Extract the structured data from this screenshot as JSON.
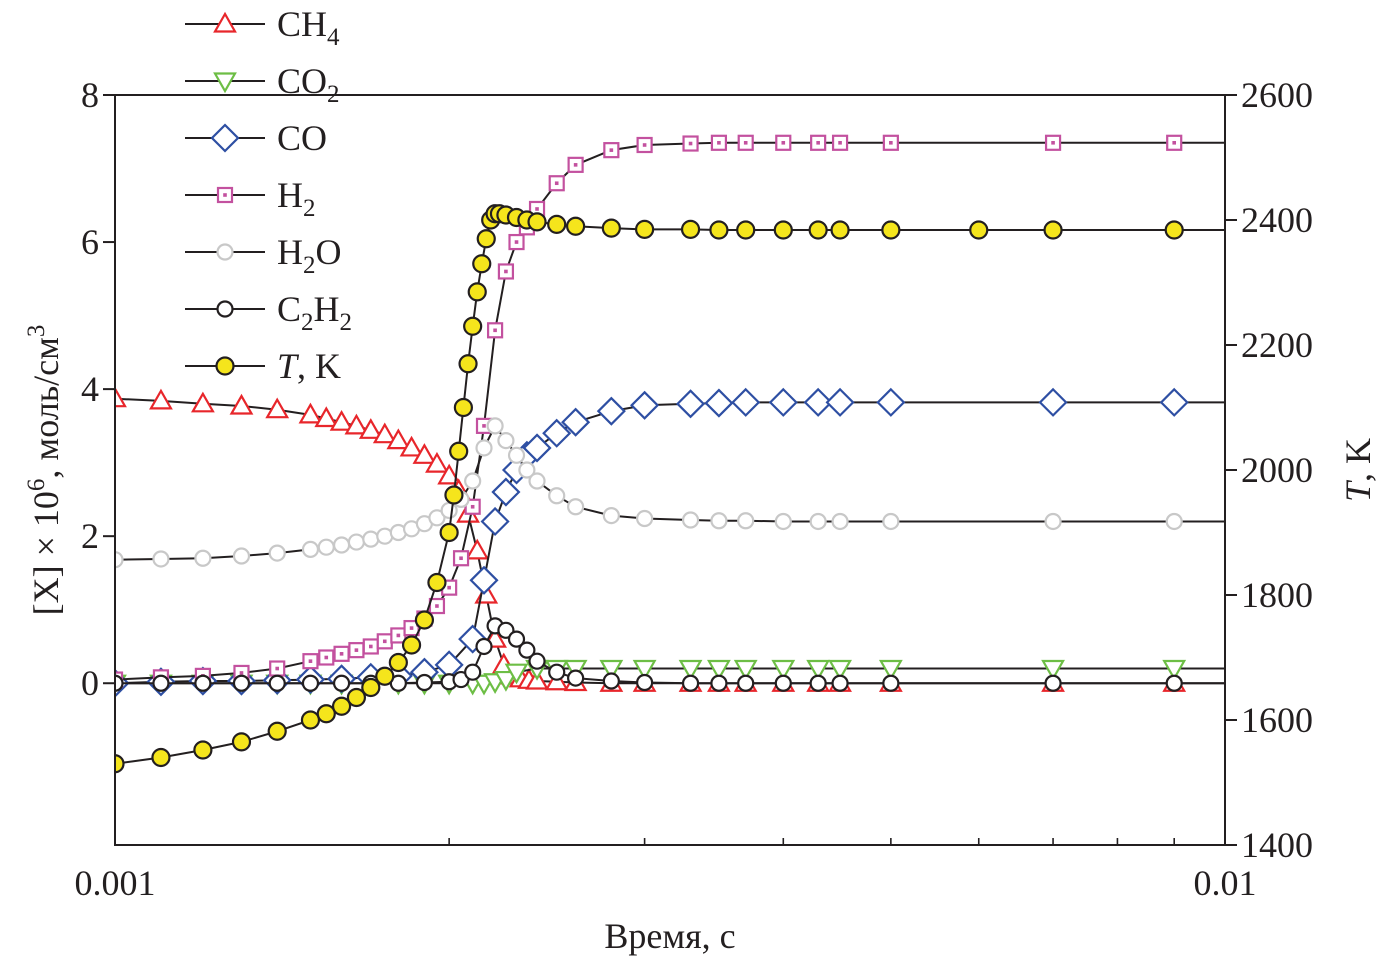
{
  "chart_data": {
    "type": "scatter",
    "title": "",
    "x_scale": "log",
    "xlim": [
      0.001,
      0.01
    ],
    "x_ticks": [
      "0.001",
      "0.01"
    ],
    "xlabel": "Время, с",
    "y_left": {
      "label_parts": [
        "[X] × 10",
        "6",
        ", моль/см",
        "3"
      ],
      "lim": [
        -2.2,
        8
      ],
      "ticks": [
        "0",
        "2",
        "4",
        "6",
        "8"
      ]
    },
    "y_right": {
      "label_parts": [
        "T",
        ", K"
      ],
      "lim": [
        1400,
        2600
      ],
      "ticks": [
        "1400",
        "1600",
        "1800",
        "2000",
        "2200",
        "2400",
        "2600"
      ]
    },
    "grid": false,
    "legend_position": "top-left",
    "series": [
      {
        "name": "CH4",
        "name_parts": [
          [
            "CH",
            "normal"
          ],
          [
            "4",
            "sub"
          ]
        ],
        "axis": "left",
        "marker": "triangle-up",
        "color": "#e8262b",
        "x": [
          0.001,
          0.0011,
          0.0012,
          0.0013,
          0.0014,
          0.0015,
          0.00155,
          0.0016,
          0.00165,
          0.0017,
          0.00175,
          0.0018,
          0.00185,
          0.0019,
          0.00195,
          0.002,
          0.00204,
          0.00208,
          0.00212,
          0.00216,
          0.0022,
          0.00224,
          0.00228,
          0.00232,
          0.00236,
          0.0024,
          0.0025,
          0.0026,
          0.0028,
          0.003,
          0.0033,
          0.0035,
          0.0037,
          0.004,
          0.0043,
          0.0045,
          0.005,
          0.007,
          0.009
        ],
        "y": [
          3.87,
          3.84,
          3.8,
          3.77,
          3.72,
          3.65,
          3.6,
          3.55,
          3.5,
          3.44,
          3.38,
          3.3,
          3.2,
          3.1,
          2.98,
          2.82,
          2.62,
          2.3,
          1.8,
          1.2,
          0.6,
          0.25,
          0.1,
          0.06,
          0.04,
          0.03,
          0.02,
          0.01,
          0.0,
          0.0,
          0.0,
          0.0,
          0.0,
          0.0,
          0.0,
          0.0,
          0.0,
          0.0,
          0.0
        ]
      },
      {
        "name": "CO2",
        "name_parts": [
          [
            "CO",
            "normal"
          ],
          [
            "2",
            "sub"
          ]
        ],
        "axis": "left",
        "marker": "triangle-down",
        "color": "#6dbe45",
        "x": [
          0.001,
          0.0011,
          0.0012,
          0.0013,
          0.0014,
          0.0015,
          0.0016,
          0.0017,
          0.0018,
          0.0019,
          0.002,
          0.0021,
          0.00215,
          0.0022,
          0.00225,
          0.0023,
          0.0024,
          0.0025,
          0.0026,
          0.0028,
          0.003,
          0.0033,
          0.0035,
          0.0037,
          0.004,
          0.0043,
          0.0045,
          0.005,
          0.007,
          0.009
        ],
        "y": [
          0.0,
          0.0,
          0.0,
          0.0,
          0.0,
          0.0,
          0.0,
          0.0,
          0.0,
          0.0,
          0.0,
          0.0,
          0.0,
          0.02,
          0.05,
          0.15,
          0.2,
          0.2,
          0.2,
          0.2,
          0.2,
          0.2,
          0.2,
          0.2,
          0.2,
          0.2,
          0.2,
          0.2,
          0.2,
          0.2
        ]
      },
      {
        "name": "CO",
        "name_parts": [
          [
            "CO",
            "normal"
          ]
        ],
        "axis": "left",
        "marker": "diamond",
        "color": "#2e4fa3",
        "x": [
          0.001,
          0.0011,
          0.0012,
          0.0013,
          0.0014,
          0.0015,
          0.0016,
          0.0017,
          0.0018,
          0.0019,
          0.002,
          0.0021,
          0.00215,
          0.0022,
          0.00225,
          0.0023,
          0.00235,
          0.0024,
          0.0025,
          0.0026,
          0.0028,
          0.003,
          0.0033,
          0.0035,
          0.0037,
          0.004,
          0.0043,
          0.0045,
          0.005,
          0.007,
          0.009
        ],
        "y": [
          0.0,
          0.02,
          0.03,
          0.03,
          0.04,
          0.05,
          0.06,
          0.08,
          0.1,
          0.15,
          0.25,
          0.6,
          1.4,
          2.2,
          2.6,
          2.9,
          3.1,
          3.2,
          3.4,
          3.55,
          3.7,
          3.78,
          3.8,
          3.81,
          3.82,
          3.82,
          3.82,
          3.82,
          3.82,
          3.82,
          3.82
        ]
      },
      {
        "name": "H2",
        "name_parts": [
          [
            "H",
            "normal"
          ],
          [
            "2",
            "sub"
          ]
        ],
        "axis": "left",
        "marker": "square-dot",
        "color": "#c3519f",
        "x": [
          0.001,
          0.0011,
          0.0012,
          0.0013,
          0.0014,
          0.0015,
          0.00155,
          0.0016,
          0.00165,
          0.0017,
          0.00175,
          0.0018,
          0.00185,
          0.0019,
          0.00195,
          0.002,
          0.00205,
          0.0021,
          0.00215,
          0.0022,
          0.00225,
          0.0023,
          0.00235,
          0.0024,
          0.0025,
          0.0026,
          0.0028,
          0.003,
          0.0033,
          0.0035,
          0.0037,
          0.004,
          0.0043,
          0.0045,
          0.005,
          0.007,
          0.009
        ],
        "y": [
          0.05,
          0.08,
          0.1,
          0.14,
          0.2,
          0.3,
          0.35,
          0.4,
          0.45,
          0.5,
          0.57,
          0.65,
          0.75,
          0.88,
          1.05,
          1.3,
          1.7,
          2.4,
          3.5,
          4.8,
          5.6,
          6.0,
          6.2,
          6.45,
          6.8,
          7.05,
          7.25,
          7.32,
          7.34,
          7.35,
          7.35,
          7.35,
          7.35,
          7.35,
          7.35,
          7.35,
          7.35
        ]
      },
      {
        "name": "H2O",
        "name_parts": [
          [
            "H",
            "normal"
          ],
          [
            "2",
            "sub"
          ],
          [
            "O",
            "normal"
          ]
        ],
        "axis": "left",
        "marker": "circle",
        "color": "#c8c8c8",
        "x": [
          0.001,
          0.0011,
          0.0012,
          0.0013,
          0.0014,
          0.0015,
          0.00155,
          0.0016,
          0.00165,
          0.0017,
          0.00175,
          0.0018,
          0.00185,
          0.0019,
          0.00195,
          0.002,
          0.00205,
          0.0021,
          0.00215,
          0.0022,
          0.00225,
          0.0023,
          0.00235,
          0.0024,
          0.0025,
          0.0026,
          0.0028,
          0.003,
          0.0033,
          0.0035,
          0.0037,
          0.004,
          0.0043,
          0.0045,
          0.005,
          0.007,
          0.009
        ],
        "y": [
          1.68,
          1.69,
          1.7,
          1.73,
          1.77,
          1.82,
          1.85,
          1.88,
          1.92,
          1.96,
          2.0,
          2.05,
          2.1,
          2.17,
          2.25,
          2.35,
          2.5,
          2.75,
          3.2,
          3.5,
          3.3,
          3.1,
          2.9,
          2.75,
          2.55,
          2.4,
          2.28,
          2.24,
          2.22,
          2.21,
          2.21,
          2.2,
          2.2,
          2.2,
          2.2,
          2.2,
          2.2
        ]
      },
      {
        "name": "C2H2",
        "name_parts": [
          [
            "C",
            "normal"
          ],
          [
            "2",
            "sub"
          ],
          [
            "H",
            "normal"
          ],
          [
            "2",
            "sub"
          ]
        ],
        "axis": "left",
        "marker": "circle",
        "color": "#231f20",
        "x": [
          0.001,
          0.0011,
          0.0012,
          0.0013,
          0.0014,
          0.0015,
          0.0016,
          0.0017,
          0.0018,
          0.0019,
          0.002,
          0.00205,
          0.0021,
          0.00215,
          0.0022,
          0.00225,
          0.0023,
          0.00235,
          0.0024,
          0.0025,
          0.0026,
          0.0028,
          0.003,
          0.0033,
          0.0035,
          0.0037,
          0.004,
          0.0043,
          0.0045,
          0.005,
          0.007,
          0.009
        ],
        "y": [
          0.0,
          0.0,
          0.0,
          0.0,
          0.0,
          0.0,
          0.0,
          0.0,
          0.0,
          0.01,
          0.02,
          0.05,
          0.15,
          0.5,
          0.78,
          0.72,
          0.6,
          0.45,
          0.3,
          0.15,
          0.07,
          0.03,
          0.01,
          0.0,
          0.0,
          0.0,
          0.0,
          0.0,
          0.0,
          0.0,
          0.0,
          0.0
        ]
      },
      {
        "name": "T, K",
        "name_parts": [
          [
            "T",
            "italic"
          ],
          [
            ", K",
            "normal"
          ]
        ],
        "axis": "right",
        "marker": "circle-filled",
        "color": "#f5e51c",
        "x": [
          0.001,
          0.0011,
          0.0012,
          0.0013,
          0.0014,
          0.0015,
          0.00155,
          0.0016,
          0.00165,
          0.0017,
          0.00175,
          0.0018,
          0.00185,
          0.0019,
          0.00195,
          0.002,
          0.00202,
          0.00204,
          0.00206,
          0.00208,
          0.0021,
          0.00212,
          0.00214,
          0.00216,
          0.00218,
          0.0022,
          0.00222,
          0.00225,
          0.0023,
          0.00235,
          0.0024,
          0.0025,
          0.0026,
          0.0028,
          0.003,
          0.0033,
          0.0035,
          0.0037,
          0.004,
          0.0043,
          0.0045,
          0.005,
          0.006,
          0.007,
          0.009
        ],
        "y": [
          1530,
          1540,
          1552,
          1565,
          1582,
          1600,
          1610,
          1622,
          1636,
          1652,
          1670,
          1692,
          1720,
          1760,
          1820,
          1900,
          1960,
          2030,
          2100,
          2170,
          2230,
          2285,
          2330,
          2370,
          2400,
          2410,
          2410,
          2408,
          2404,
          2400,
          2397,
          2393,
          2390,
          2387,
          2385,
          2385,
          2384,
          2384,
          2384,
          2384,
          2384,
          2384,
          2384,
          2384,
          2384
        ]
      }
    ]
  }
}
